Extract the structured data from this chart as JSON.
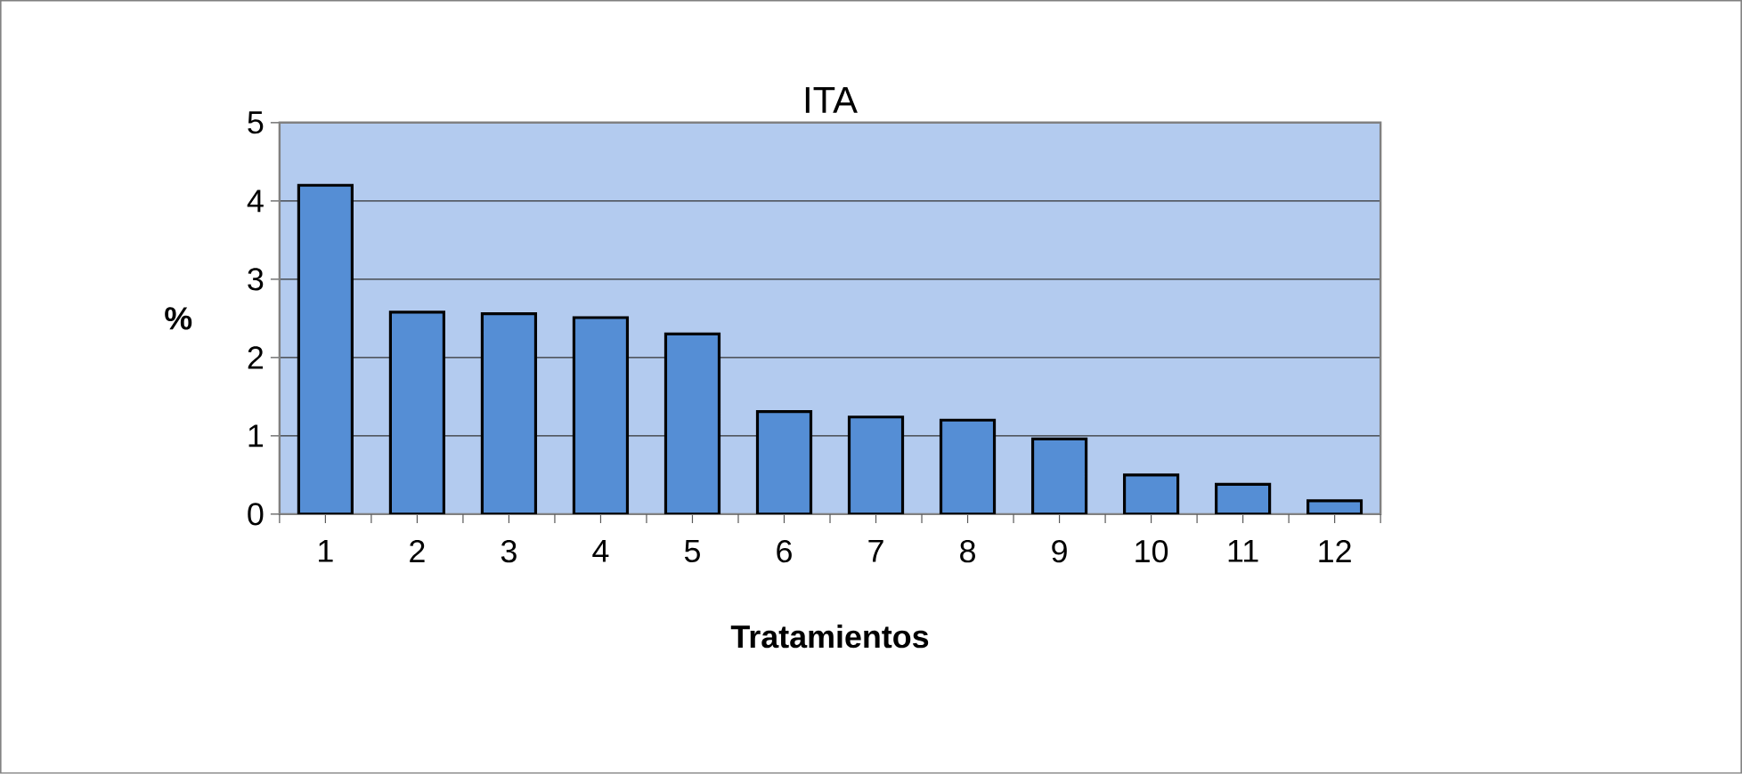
{
  "chart_data": {
    "type": "bar",
    "title": "ITA",
    "xlabel": "Tratamientos",
    "ylabel": "%",
    "categories": [
      "1",
      "2",
      "3",
      "4",
      "5",
      "6",
      "7",
      "8",
      "9",
      "10",
      "11",
      "12"
    ],
    "values": [
      4.2,
      2.58,
      2.56,
      2.51,
      2.3,
      1.31,
      1.24,
      1.2,
      0.96,
      0.5,
      0.38,
      0.17
    ],
    "color": "#558ed5",
    "ylim": [
      0,
      5
    ],
    "yticks": [
      0,
      1,
      2,
      3,
      4,
      5
    ],
    "grid": "y"
  }
}
